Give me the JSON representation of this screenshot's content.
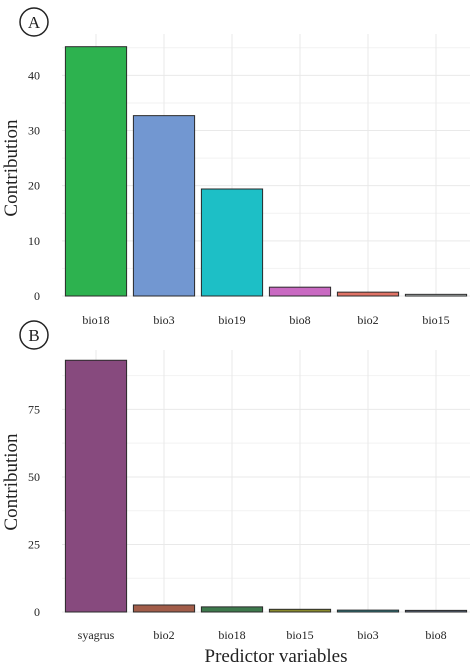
{
  "panel_labels": [
    "A",
    "B"
  ],
  "xlabel": "Predictor variables",
  "chart_data": [
    {
      "type": "bar",
      "panel": "A",
      "ylabel": "Contribution",
      "categories": [
        "bio18",
        "bio3",
        "bio19",
        "bio8",
        "bio2",
        "bio15"
      ],
      "values": [
        45.2,
        32.7,
        19.4,
        1.6,
        0.7,
        0.3
      ],
      "colors": [
        "#2db24f",
        "#7297d1",
        "#1dbfc6",
        "#c96ac2",
        "#e07366",
        "#cfd6d6"
      ],
      "yticks": [
        0,
        10,
        20,
        30,
        40
      ],
      "ylim": [
        0,
        47.5
      ],
      "grid": true
    },
    {
      "type": "bar",
      "panel": "B",
      "ylabel": "Contribution",
      "categories": [
        "syagrus",
        "bio2",
        "bio18",
        "bio15",
        "bio3",
        "bio8"
      ],
      "values": [
        93.2,
        2.6,
        1.9,
        1.0,
        0.7,
        0.6
      ],
      "colors": [
        "#874a7e",
        "#a25d49",
        "#3e7a4d",
        "#8a8a2c",
        "#2e7f86",
        "#5d6f86"
      ],
      "yticks": [
        0,
        25,
        50,
        75
      ],
      "ylim": [
        0,
        97
      ],
      "grid": true
    }
  ]
}
